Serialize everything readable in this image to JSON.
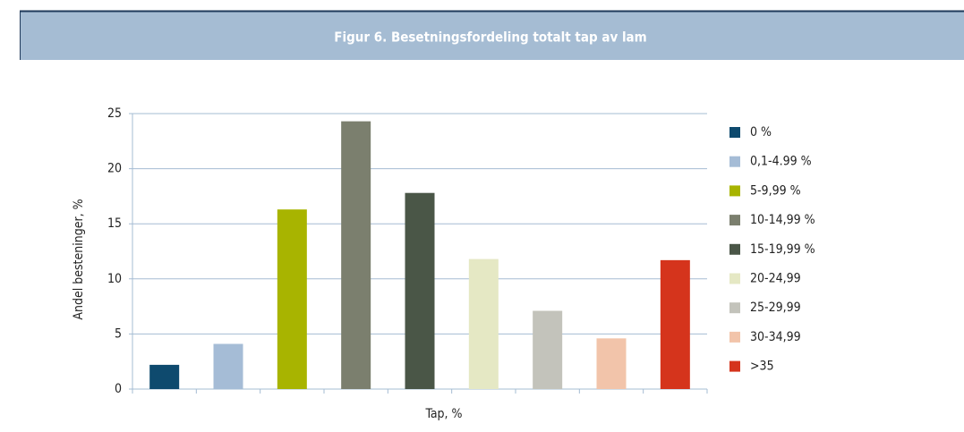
{
  "chart_data": {
    "type": "bar",
    "title": "Figur 6. Besetningsfordeling totalt tap av lam",
    "x_label": "Tap, %",
    "y_label": "Andel besteninger, %",
    "categories": [
      null
    ],
    "series": [
      {
        "name": "0 %",
        "color": "#0e4a6e",
        "values": [
          2.2
        ]
      },
      {
        "name": "0,1-4.99 %",
        "color": "#a5bcd6",
        "values": [
          4.1
        ]
      },
      {
        "name": "5-9,99 %",
        "color": "#a8b400",
        "values": [
          16.3
        ]
      },
      {
        "name": "10-14,99 %",
        "color": "#7b7f6e",
        "values": [
          24.3
        ]
      },
      {
        "name": "15-19,99 %",
        "color": "#4a5647",
        "values": [
          17.8
        ]
      },
      {
        "name": "20-24,99",
        "color": "#e5e8c4",
        "values": [
          11.8
        ]
      },
      {
        "name": "25-29,99",
        "color": "#c3c3bb",
        "values": [
          7.1
        ]
      },
      {
        "name": "30-34,99",
        "color": "#f2c4aa",
        "values": [
          4.6
        ]
      },
      {
        "name": ">35",
        "color": "#d5341c",
        "values": [
          11.7
        ]
      }
    ],
    "ylim": [
      0,
      25
    ],
    "yticks": [
      0,
      5,
      10,
      15,
      20,
      25
    ],
    "grid": true,
    "legend": "right"
  }
}
